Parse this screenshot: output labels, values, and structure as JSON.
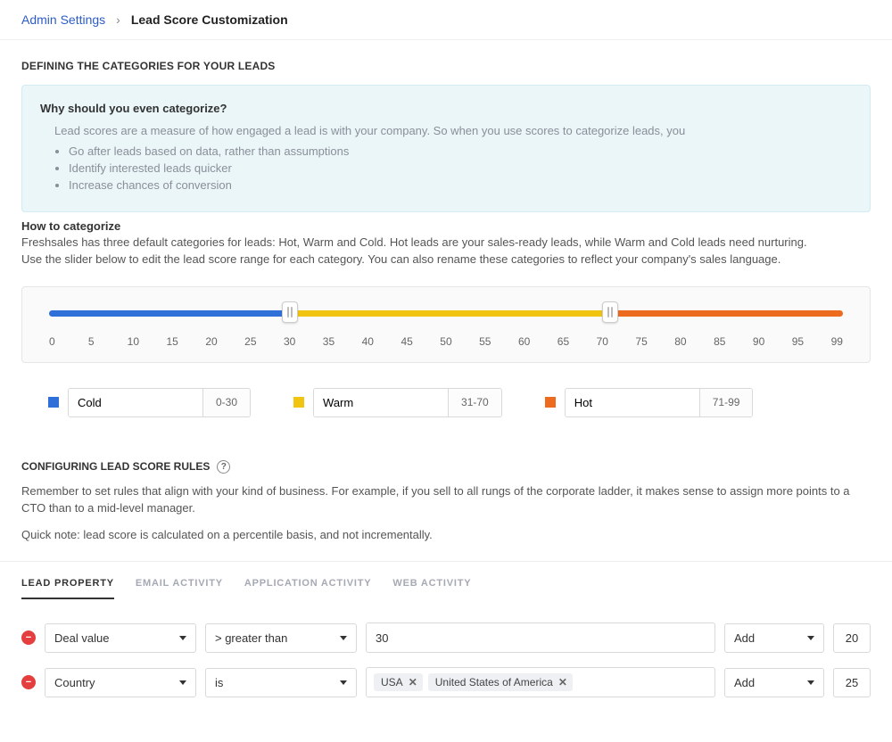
{
  "breadcrumb": {
    "parent": "Admin Settings",
    "current": "Lead Score Customization"
  },
  "defining": {
    "title": "DEFINING THE CATEGORIES FOR YOUR LEADS",
    "why_title": "Why should you even categorize?",
    "why_intro": "Lead scores are a measure of how engaged a lead is with your company. So when you use scores to categorize leads, you",
    "why_points": [
      "Go after leads based on data, rather than assumptions",
      "Identify interested leads quicker",
      "Increase chances of conversion"
    ],
    "how_title": "How to categorize",
    "how_body_1": "Freshsales has three default categories for leads: Hot, Warm and Cold. Hot leads are your sales-ready leads, while Warm and Cold leads need nurturing.",
    "how_body_2": "Use the slider below to edit the lead score range for each category. You can also rename these categories to reflect your company's sales language."
  },
  "slider": {
    "min": 0,
    "max": 99,
    "handle1": 30,
    "handle2": 70,
    "ticks": [
      "0",
      "5",
      "10",
      "15",
      "20",
      "25",
      "30",
      "35",
      "40",
      "45",
      "50",
      "55",
      "60",
      "65",
      "70",
      "75",
      "80",
      "85",
      "90",
      "95",
      "99"
    ],
    "colors": {
      "cold": "#2f6fd8",
      "warm": "#f1c40f",
      "hot": "#ec6b1e"
    }
  },
  "categories": [
    {
      "key": "cold",
      "label": "Cold",
      "range": "0-30",
      "color": "#2f6fd8"
    },
    {
      "key": "warm",
      "label": "Warm",
      "range": "31-70",
      "color": "#f1c40f"
    },
    {
      "key": "hot",
      "label": "Hot",
      "range": "71-99",
      "color": "#ec6b1e"
    }
  ],
  "configuring": {
    "title": "CONFIGURING LEAD SCORE RULES",
    "p1": "Remember to set rules that align with your kind of business. For example, if you sell to all rungs of the corporate ladder, it makes sense to assign more points to a CTO than to a mid-level manager.",
    "p2": "Quick note: lead score is calculated on a percentile basis, and not incrementally."
  },
  "tabs": [
    {
      "key": "lead_property",
      "label": "LEAD  PROPERTY",
      "active": true
    },
    {
      "key": "email_activity",
      "label": "EMAIL  ACTIVITY",
      "active": false
    },
    {
      "key": "app_activity",
      "label": "APPLICATION  ACTIVITY",
      "active": false
    },
    {
      "key": "web_activity",
      "label": "WEB  ACTIVITY",
      "active": false
    }
  ],
  "rules": [
    {
      "field": "Deal value",
      "operator": "> greater than",
      "value_type": "text",
      "value_text": "30",
      "action": "Add",
      "points": "20"
    },
    {
      "field": "Country",
      "operator": "is",
      "value_type": "tags",
      "value_tags": [
        "USA",
        "United States of America"
      ],
      "action": "Add",
      "points": "25"
    }
  ]
}
